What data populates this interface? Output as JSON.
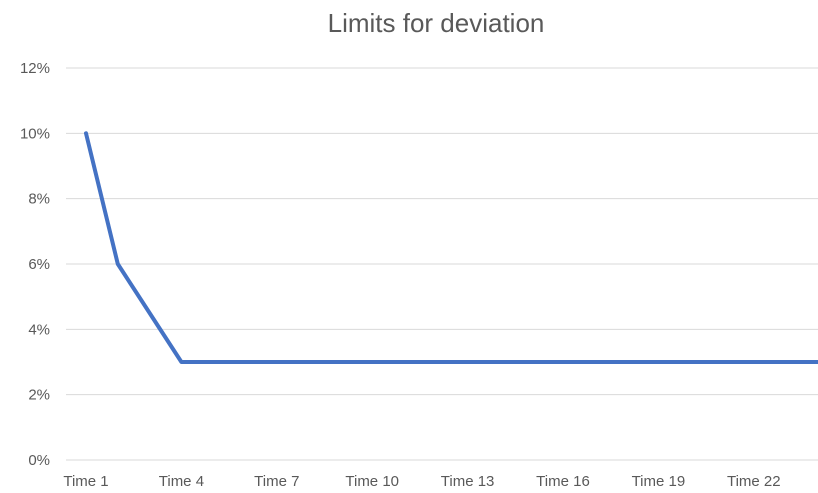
{
  "chart_data": {
    "type": "line",
    "title": "Limits for deviation",
    "xlabel": "",
    "ylabel": "",
    "categories": [
      "Time 1",
      "Time 2",
      "Time 3",
      "Time 4",
      "Time 5",
      "Time 6",
      "Time 7",
      "Time 8",
      "Time 9",
      "Time 10",
      "Time 11",
      "Time 12",
      "Time 13",
      "Time 14",
      "Time 15",
      "Time 16",
      "Time 17",
      "Time 18",
      "Time 19",
      "Time 20",
      "Time 21",
      "Time 22",
      "Time 23",
      "Time 24"
    ],
    "x_tick_labels": [
      "Time 1",
      "Time 4",
      "Time 7",
      "Time 10",
      "Time 13",
      "Time 16",
      "Time 19",
      "Time 22"
    ],
    "y_tick_labels": [
      "0%",
      "2%",
      "4%",
      "6%",
      "8%",
      "10%",
      "12%"
    ],
    "ylim": [
      0,
      0.12
    ],
    "grid": true,
    "legend": "none",
    "series": [
      {
        "color": "#4472c4",
        "values": [
          0.1,
          0.06,
          0.045,
          0.03,
          0.03,
          0.03,
          0.03,
          0.03,
          0.03,
          0.03,
          0.03,
          0.03,
          0.03,
          0.03,
          0.03,
          0.03,
          0.03,
          0.03,
          0.03,
          0.03,
          0.03,
          0.03,
          0.03,
          0.03
        ]
      }
    ]
  }
}
